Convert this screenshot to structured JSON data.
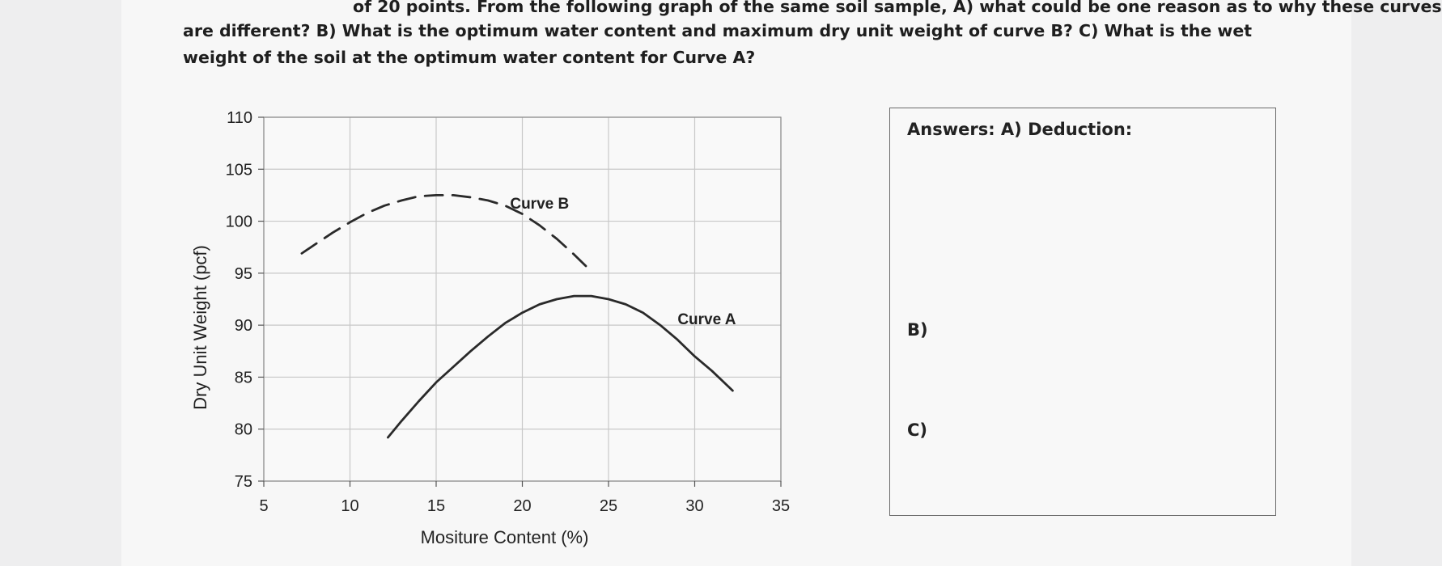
{
  "question": {
    "cut_line": "of 20 points. From the following graph of the same soil sample, A) what could be one reason as to why these curves",
    "line1": "are different? B) What is the optimum water content and maximum dry unit weight of curve B? C) What is the wet",
    "line2": "weight of the soil at the optimum water content for Curve A?"
  },
  "answers": {
    "heading": "Answers:  A) Deduction:",
    "b_label": "B)",
    "c_label": "C)"
  },
  "chart_data": {
    "type": "line",
    "title": "",
    "xlabel": "Mositure Content (%)",
    "ylabel": "Dry Unit Weight (pcf)",
    "xlim": [
      5,
      35
    ],
    "ylim": [
      75,
      110
    ],
    "xticks": [
      5,
      10,
      15,
      20,
      25,
      30,
      35
    ],
    "yticks": [
      75,
      80,
      85,
      90,
      95,
      100,
      105,
      110
    ],
    "grid": true,
    "series": [
      {
        "name": "Curve B",
        "style": "dashed",
        "x": [
          7.2,
          8,
          9,
          10,
          11,
          12,
          13,
          14,
          15,
          16,
          17,
          18,
          19,
          20,
          21,
          22,
          23,
          23.8
        ],
        "y": [
          96.9,
          97.8,
          98.9,
          99.9,
          100.8,
          101.5,
          102.0,
          102.4,
          102.5,
          102.5,
          102.3,
          102.0,
          101.5,
          100.7,
          99.6,
          98.3,
          96.8,
          95.5
        ]
      },
      {
        "name": "Curve A",
        "style": "solid",
        "x": [
          12.2,
          13,
          14,
          15,
          16,
          17,
          18,
          19,
          20,
          21,
          22,
          23,
          24,
          25,
          26,
          27,
          28,
          29,
          30,
          31,
          32.2
        ],
        "y": [
          79.2,
          80.8,
          82.7,
          84.5,
          86.0,
          87.5,
          88.9,
          90.2,
          91.2,
          92.0,
          92.5,
          92.8,
          92.8,
          92.5,
          92.0,
          91.2,
          90.0,
          88.6,
          87.0,
          85.6,
          83.7
        ]
      }
    ],
    "annotations": [
      "Curve B",
      "Curve A"
    ],
    "line_color": "#2a2a2a",
    "grid_color": "#c8c8c8"
  }
}
